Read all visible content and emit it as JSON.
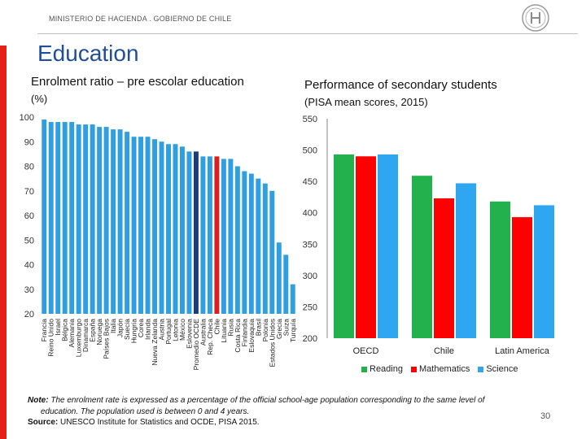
{
  "header": {
    "ministry": "MINISTERIO DE HACIENDA . GOBIERNO DE CHILE"
  },
  "page": {
    "title": "Education",
    "number": "30"
  },
  "colors": {
    "accent": "#e32119",
    "title_blue": "#1f4e9a",
    "bar_blue": "#2f9fe2",
    "oecd_navy": "#1f3a78",
    "chile_red": "#e01d1d",
    "reading_green": "#22b14c",
    "math_red": "#ff0000",
    "science_blue": "#2ea7f0"
  },
  "chart_data": [
    {
      "type": "bar",
      "title": "Enrolment ratio – pre escolar education",
      "subtitle": "(%)",
      "ylim": [
        20,
        100
      ],
      "yticks": [
        20,
        30,
        40,
        50,
        60,
        70,
        80,
        90,
        100
      ],
      "categories": [
        "Francia",
        "Reino Unido",
        "Israel",
        "Bélgica",
        "Alemania",
        "Luxemburgo",
        "Dinamarca",
        "España",
        "Noruega",
        "Países Bajos",
        "Italia",
        "Japón",
        "Suecia",
        "Hungría",
        "Corea",
        "Irlanda",
        "Nueva Zelanda",
        "Austria",
        "Portugal",
        "Letonia",
        "México",
        "Eslovenia",
        "Promedio OCDE",
        "Australia",
        "Rep. Checa",
        "Chile",
        "Lituania",
        "Rusia",
        "Costa Rica",
        "Finlandia",
        "Eslovaquia",
        "Brasil",
        "Polonia",
        "Estados Unidos",
        "Grecia",
        "Suiza",
        "Turquía"
      ],
      "values": [
        99,
        98,
        98,
        98,
        98,
        97,
        97,
        97,
        96,
        96,
        95,
        95,
        94,
        92,
        92,
        92,
        91,
        90,
        89,
        89,
        88,
        86,
        86,
        84,
        84,
        84,
        83,
        83,
        80,
        78,
        77,
        75,
        73,
        70,
        49,
        44,
        32
      ],
      "highlight": {
        "Promedio OCDE": "oecd_navy",
        "Chile": "chile_red"
      }
    },
    {
      "type": "bar",
      "title": "Performance of secondary students",
      "subtitle": "(PISA mean scores, 2015)",
      "ylim": [
        200,
        550
      ],
      "yticks": [
        200,
        250,
        300,
        350,
        400,
        450,
        500,
        550
      ],
      "categories": [
        "OECD",
        "Chile",
        "Latin America"
      ],
      "series": [
        {
          "name": "Reading",
          "values": [
            493,
            459,
            418
          ]
        },
        {
          "name": "Mathematics",
          "values": [
            490,
            423,
            393
          ]
        },
        {
          "name": "Science",
          "values": [
            493,
            447,
            412
          ]
        }
      ]
    }
  ],
  "footer": {
    "note_label": "Note:",
    "note_text": "The enrolment rate is expressed as a percentage of the official school-age population corresponding to the same level of",
    "note_text2": "education. The population used is between 0 and 4 years.",
    "source_label": "Source:",
    "source_text": "UNESCO Institute for Statistics and OCDE, PISA 2015."
  }
}
